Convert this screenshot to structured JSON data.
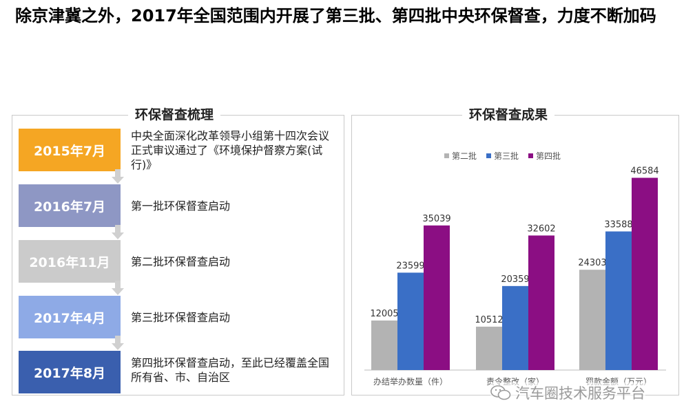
{
  "title": "除京津冀之外，2017年全国范围内开展了第三批、第四批中央环保督查，力度不断加码",
  "left_panel": {
    "heading": "环保督查梳理",
    "timeline": [
      {
        "date": "2015年7月",
        "text": "中央全面深化改革领导小组第十四次会议正式审议通过了《环境保护督察方案(试行)》",
        "color": "#f5a623"
      },
      {
        "date": "2016年7月",
        "text": "第一批环保督查启动",
        "color": "#8e97c4"
      },
      {
        "date": "2016年11月",
        "text": "第二批环保督查启动",
        "color": "#cbcbcb"
      },
      {
        "date": "2017年4月",
        "text": "第三批环保督查启动",
        "color": "#8eaae6"
      },
      {
        "date": "2017年8月",
        "text": "第四批环保督查启动，至此已经覆盖全国所有省、市、自治区",
        "color": "#3a5fae"
      }
    ]
  },
  "right_panel": {
    "heading": "环保督查成果"
  },
  "chart_data": {
    "type": "bar",
    "categories": [
      "办结举办数量（件）",
      "责令整改（家）",
      "罚款金额（万元）"
    ],
    "series": [
      {
        "name": "第二批",
        "values": [
          12005,
          10512,
          24303
        ],
        "color": "#b3b3b3"
      },
      {
        "name": "第三批",
        "values": [
          23599,
          20359,
          33588
        ],
        "color": "#3a6fc6"
      },
      {
        "name": "第四批",
        "values": [
          35039,
          32602,
          46584
        ],
        "color": "#8b0e83"
      }
    ],
    "ylim": [
      0,
      50000
    ],
    "legend_position": "top",
    "grid": false
  },
  "watermark": {
    "text": "汽车圈技术服务平台",
    "icon": "wechat-icon"
  }
}
